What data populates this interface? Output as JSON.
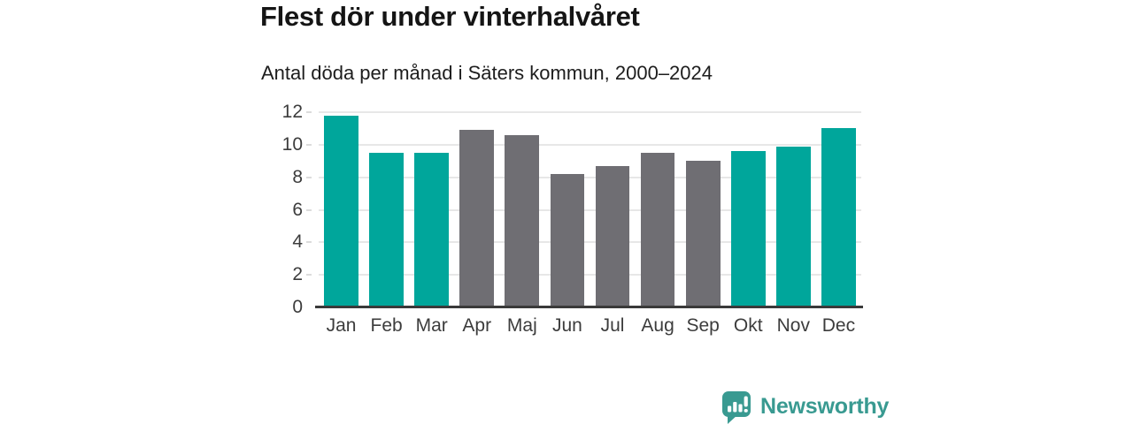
{
  "header": {
    "title": "Flest dör under vinterhalvåret",
    "subtitle": "Antal döda per månad i Säters kommun, 2000–2024"
  },
  "chart_data": {
    "type": "bar",
    "title": "Flest dör under vinterhalvåret",
    "subtitle": "Antal döda per månad i Säters kommun, 2000–2024",
    "categories": [
      "Jan",
      "Feb",
      "Mar",
      "Apr",
      "Maj",
      "Jun",
      "Jul",
      "Aug",
      "Sep",
      "Okt",
      "Nov",
      "Dec"
    ],
    "values": [
      11.8,
      9.5,
      9.5,
      10.9,
      10.6,
      8.2,
      8.7,
      9.5,
      9.0,
      9.6,
      9.9,
      11.0
    ],
    "bar_colors": [
      "teal",
      "teal",
      "teal",
      "gray",
      "gray",
      "gray",
      "gray",
      "gray",
      "gray",
      "teal",
      "teal",
      "teal"
    ],
    "colors": {
      "teal": "#00a69b",
      "gray": "#6f6e73"
    },
    "xlabel": "",
    "ylabel": "",
    "ylim": [
      0,
      12
    ],
    "yticks": [
      0,
      2,
      4,
      6,
      8,
      10,
      12
    ],
    "grid": true,
    "legend": false
  },
  "footer": {
    "brand": "Newsworthy",
    "brand_color": "#399a91"
  }
}
